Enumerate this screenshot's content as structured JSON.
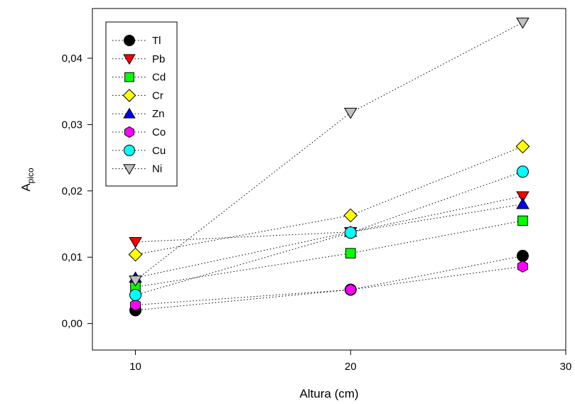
{
  "chart_data": {
    "type": "scatter",
    "xlabel": "Altura (cm)",
    "ylabel_main": "A",
    "ylabel_sub": "pico",
    "xlim": [
      8,
      30
    ],
    "ylim": [
      -0.004,
      0.0475
    ],
    "x_ticks": [
      10,
      20,
      30
    ],
    "x_tick_labels": [
      "10",
      "20",
      "30"
    ],
    "y_ticks": [
      0,
      0.01,
      0.02,
      0.03,
      0.04
    ],
    "y_tick_labels": [
      "0,00",
      "0,01",
      "0,02",
      "0,03",
      "0,04"
    ],
    "grid": false,
    "legend_position": "top-left",
    "line_style": "dotted",
    "x": [
      10,
      20,
      28
    ],
    "series": [
      {
        "name": "Tl",
        "values": [
          0.002,
          0.0051,
          0.0102
        ],
        "marker": "circle",
        "color": "#000000"
      },
      {
        "name": "Pb",
        "values": [
          0.0123,
          0.0138,
          0.0192
        ],
        "marker": "triangle-down",
        "color": "#ff0000"
      },
      {
        "name": "Cd",
        "values": [
          0.0055,
          0.0106,
          0.0155
        ],
        "marker": "square",
        "color": "#00ff00"
      },
      {
        "name": "Cr",
        "values": [
          0.0104,
          0.0163,
          0.0267
        ],
        "marker": "diamond",
        "color": "#ffff00"
      },
      {
        "name": "Zn",
        "values": [
          0.0069,
          0.0138,
          0.018
        ],
        "marker": "triangle-up",
        "color": "#0000ff"
      },
      {
        "name": "Co",
        "values": [
          0.0028,
          0.0051,
          0.0086
        ],
        "marker": "hexagon",
        "color": "#ff00ff"
      },
      {
        "name": "Cu",
        "values": [
          0.0043,
          0.0137,
          0.0229
        ],
        "marker": "circle",
        "color": "#00ffff"
      },
      {
        "name": "Ni",
        "values": [
          0.0065,
          0.0318,
          0.0454
        ],
        "marker": "triangle-down",
        "color": "#c0c0c0"
      }
    ]
  }
}
